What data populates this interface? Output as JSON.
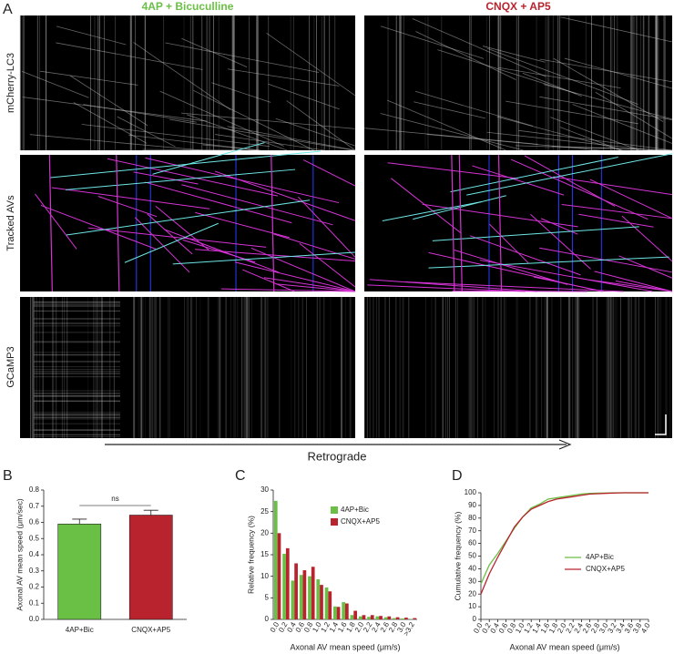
{
  "figure": {
    "panel_labels": [
      "A",
      "B",
      "C",
      "D"
    ],
    "column_titles": [
      "4AP + Bicuculline",
      "CNQX + AP5"
    ],
    "row_labels": [
      "mCherry-LC3",
      "Tracked AVs",
      "GCaMP3"
    ],
    "arrow_label": "Retrograde"
  },
  "chart_data": [
    {
      "type": "bar",
      "categories": [
        "4AP+Bic",
        "CNQX+AP5"
      ],
      "values": [
        0.59,
        0.645
      ],
      "errors": [
        0.03,
        0.03
      ],
      "colors": [
        "#6abf45",
        "#b8232e"
      ],
      "ylabel": "Axonal AV mean speed (μm/sec)",
      "annotation": "ns",
      "ylim": [
        0,
        0.8
      ],
      "yticks": [
        {
          "value": 0,
          "label": "0.0"
        },
        {
          "value": 0.1,
          "label": "0.1"
        },
        {
          "value": 0.2,
          "label": "0.2"
        },
        {
          "value": 0.3,
          "label": "0.3"
        },
        {
          "value": 0.4,
          "label": "0.4"
        },
        {
          "value": 0.5,
          "label": "0.5"
        },
        {
          "value": 0.6,
          "label": "0.6"
        },
        {
          "value": 0.7,
          "label": "0.7"
        },
        {
          "value": 0.8,
          "label": "0.8"
        }
      ]
    },
    {
      "type": "bar",
      "categories": [
        "0.0",
        "0.2",
        "0.4",
        "0.6",
        "0.8",
        "1.0",
        "1.2",
        "1.4",
        "1.6",
        "1.8",
        "2.0",
        "2.2",
        "2.4",
        "2.6",
        "2.8",
        "3.0",
        ">3.2"
      ],
      "series": [
        {
          "name": "4AP+Bic",
          "color": "#6abf45",
          "values": [
            27.5,
            15.2,
            9,
            10.3,
            10,
            9.3,
            7.4,
            3,
            4,
            1,
            0.7,
            0.6,
            0.7,
            0.5,
            0.3,
            0.2,
            0.1
          ]
        },
        {
          "name": "CNQX+AP5",
          "color": "#b8232e",
          "values": [
            20,
            16.5,
            13,
            11.4,
            12.2,
            8,
            6.5,
            2.9,
            3.7,
            2,
            1,
            1,
            0.8,
            0.7,
            0.5,
            0.4,
            0.3
          ]
        }
      ],
      "xlabel": "Axonal AV mean speed (μm/s)",
      "ylabel": "Relative frequency (%)",
      "ylim": [
        0,
        30
      ],
      "yticks": [
        0,
        5,
        10,
        15,
        20,
        25,
        30
      ]
    },
    {
      "type": "line",
      "x": [
        0,
        0.2,
        0.4,
        0.6,
        0.8,
        1.0,
        1.2,
        1.4,
        1.6,
        1.8,
        2.0,
        2.2,
        2.4,
        2.6,
        2.8,
        3.0,
        3.2,
        3.4,
        3.6,
        3.8,
        4.0
      ],
      "series": [
        {
          "name": "4AP+Bic",
          "color": "#6abf45",
          "values": [
            28,
            43,
            52,
            62,
            72,
            81,
            88,
            91,
            95,
            96,
            97,
            98,
            99,
            99.5,
            99.7,
            99.8,
            100,
            100,
            100,
            100,
            100
          ]
        },
        {
          "name": "CNQX+AP5",
          "color": "#b8232e",
          "values": [
            20,
            36,
            49,
            61,
            73,
            81,
            87,
            90,
            93,
            95,
            96,
            97,
            98,
            99,
            99.3,
            99.6,
            99.8,
            100,
            100,
            100,
            100
          ]
        }
      ],
      "xlabel": "Axonal AV mean speed (μm/s)",
      "ylabel": "Cumulative frequency (%)",
      "xlim": [
        0,
        4
      ],
      "ylim": [
        0,
        100
      ],
      "xticks": [
        {
          "value": 0,
          "label": "0.0"
        },
        {
          "value": 0.2,
          "label": "0.2"
        },
        {
          "value": 0.4,
          "label": "0.4"
        },
        {
          "value": 0.6,
          "label": "0.6"
        },
        {
          "value": 0.8,
          "label": "0.8"
        },
        {
          "value": 1,
          "label": "1.0"
        },
        {
          "value": 1.2,
          "label": "1.2"
        },
        {
          "value": 1.4,
          "label": "1.4"
        },
        {
          "value": 1.6,
          "label": "1.6"
        },
        {
          "value": 1.8,
          "label": "1.8"
        },
        {
          "value": 2,
          "label": "2.0"
        },
        {
          "value": 2.2,
          "label": "2.2"
        },
        {
          "value": 2.4,
          "label": "2.4"
        },
        {
          "value": 2.6,
          "label": "2.6"
        },
        {
          "value": 2.8,
          "label": "2.8"
        },
        {
          "value": 3,
          "label": "3.0"
        },
        {
          "value": 3.2,
          "label": "3.2"
        },
        {
          "value": 3.4,
          "label": "3.4"
        },
        {
          "value": 3.6,
          "label": "3.6"
        },
        {
          "value": 3.8,
          "label": "3.8"
        },
        {
          "value": 4,
          "label": "4.0"
        }
      ],
      "yticks": [
        0,
        10,
        20,
        30,
        40,
        50,
        60,
        70,
        80,
        90,
        100
      ]
    }
  ]
}
